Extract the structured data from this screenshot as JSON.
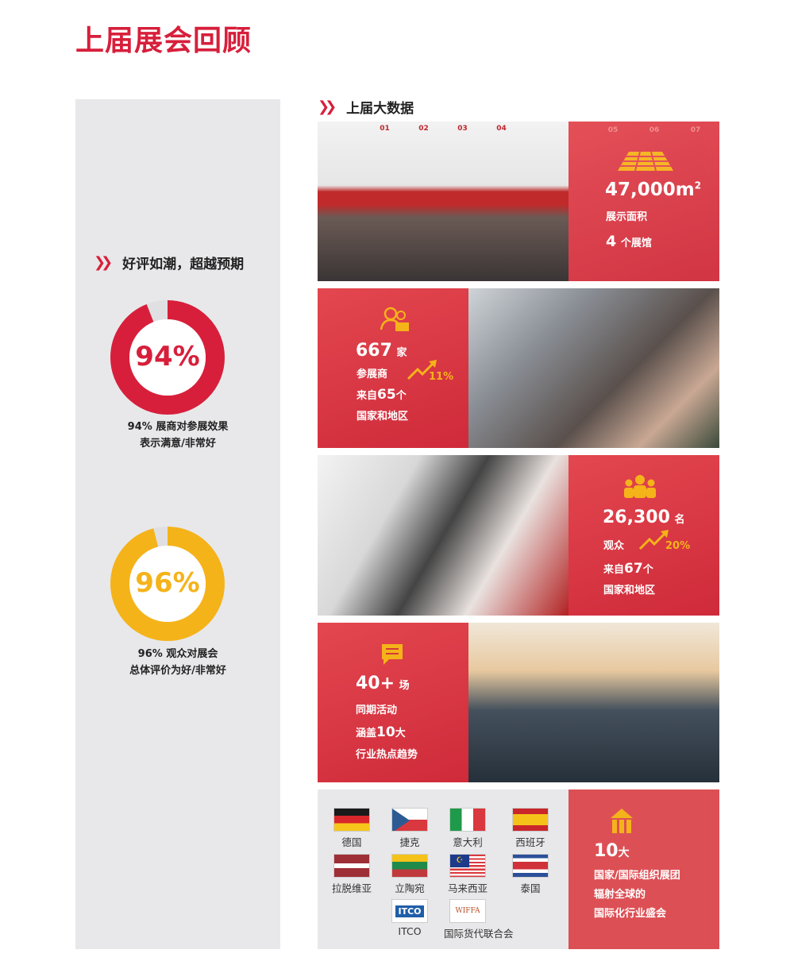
{
  "title": "上届展会回顾",
  "left": {
    "heading": "好评如潮，超越预期",
    "donuts": [
      {
        "value": 94,
        "label": "94%",
        "caption_line1": "94% 展商对参展效果",
        "caption_line2": "表示满意/非常好",
        "color": "#d71f3b"
      },
      {
        "value": 96,
        "label": "96%",
        "caption_line1": "96% 观众对展会",
        "caption_line2": "总体评价为好/非常好",
        "color": "#f5b31a"
      }
    ],
    "track_color": "#e0e0e2"
  },
  "right": {
    "heading": "上届大数据",
    "area": {
      "icon": "floor-grid-icon",
      "value": "47,000m",
      "sup": "2",
      "label": "展示面积",
      "halls_num": "4",
      "halls_unit": "个展馆"
    },
    "photo1_signs": [
      "01",
      "02",
      "03",
      "04",
      "05",
      "06",
      "07"
    ],
    "exhibitors": {
      "icon": "people-icon",
      "value": "667",
      "unit": "家",
      "label": "参展商",
      "growth": "11%",
      "growth_icon": "trend-up-arrow-icon",
      "from_prefix": "来自",
      "countries": "65",
      "from_suffix": "个",
      "region": "国家和地区"
    },
    "visitors": {
      "icon": "crowd-icon",
      "value": "26,300",
      "unit": "名",
      "label": "观众",
      "growth": "20%",
      "growth_icon": "trend-up-arrow-icon",
      "from_prefix": "来自",
      "countries": "67",
      "from_suffix": "个",
      "region": "国家和地区"
    },
    "events": {
      "icon": "chat-bubble-icon",
      "value": "40+",
      "unit": "场",
      "label": "同期活动",
      "cover_prefix": "涵盖",
      "cover_num": "10",
      "cover_suffix": "大",
      "topic": "行业热点趋势"
    },
    "pavilions": {
      "icon": "building-columns-icon",
      "value": "10",
      "unit": "大",
      "line1": "国家/国际组织展团",
      "line2": "辐射全球的",
      "line3": "国际化行业盛会"
    },
    "flags": [
      {
        "name": "德国"
      },
      {
        "name": "捷克"
      },
      {
        "name": "意大利"
      },
      {
        "name": "西班牙"
      },
      {
        "name": "拉脱维亚"
      },
      {
        "name": "立陶宛"
      },
      {
        "name": "马来西亚"
      },
      {
        "name": "泰国"
      }
    ],
    "orgs": [
      {
        "name": "ITCO",
        "logo_text": "ITCO"
      },
      {
        "name": "国际货代联合会",
        "logo_text": "WIFFA"
      }
    ],
    "accent": "#d71f3b",
    "highlight": "#f5b31a"
  }
}
